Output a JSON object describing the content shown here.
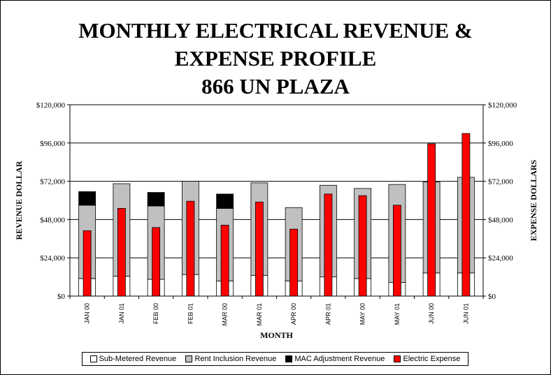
{
  "chart_data": {
    "type": "bar",
    "title": [
      "MONTHLY ELECTRICAL REVENUE &",
      "EXPENSE PROFILE",
      "866 UN PLAZA"
    ],
    "xlabel": "MONTH",
    "ylabel_left": "REVENUE DOLLAR",
    "ylabel_right": "EXPENSE DOLLARS",
    "ylim": [
      0,
      120000
    ],
    "yticks": [
      0,
      24000,
      48000,
      72000,
      96000,
      120000
    ],
    "ytick_labels": [
      "$0",
      "$24,000",
      "$48,000",
      "$72,000",
      "$96,000",
      "$120,000"
    ],
    "categories": [
      "JAN 00",
      "JAN 01",
      "FEB 00",
      "FEB 01",
      "MAR 00",
      "MAR 01",
      "APR 00",
      "APR 01",
      "MAY 00",
      "MAY 01",
      "JUN 00",
      "JUN 01"
    ],
    "series": [
      {
        "name": "Sub-Metered Revenue",
        "color": "#ffffff",
        "stack": "revenue",
        "values": [
          11000,
          12500,
          10500,
          13500,
          9500,
          13000,
          9500,
          12000,
          11000,
          8500,
          14500,
          14500
        ]
      },
      {
        "name": "Rent Inclusion Revenue",
        "color": "#c0c0c0",
        "stack": "revenue",
        "values": [
          46000,
          58000,
          46000,
          58500,
          45500,
          58000,
          46000,
          57500,
          56500,
          61500,
          57000,
          60000
        ]
      },
      {
        "name": "MAC Adjustment Revenue",
        "color": "#000000",
        "stack": "revenue",
        "values": [
          8500,
          0,
          8500,
          0,
          9000,
          0,
          0,
          0,
          0,
          0,
          0,
          0
        ]
      },
      {
        "name": "Electric Expense",
        "color": "#ff0000",
        "stack": "expense",
        "values": [
          41000,
          55000,
          43000,
          59500,
          44500,
          59000,
          42000,
          64000,
          63000,
          57000,
          95500,
          102000
        ]
      }
    ],
    "legend_position": "bottom",
    "grid": true
  }
}
